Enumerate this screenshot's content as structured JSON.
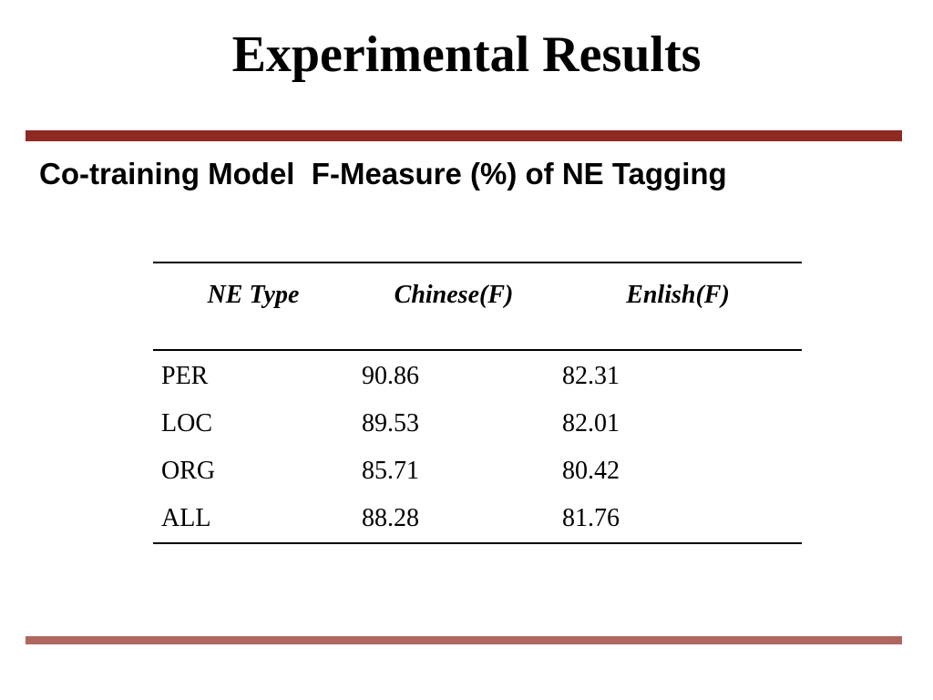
{
  "slide": {
    "title": "Experimental Results",
    "subtitle": "Co-training Model  F-Measure (%) of NE Tagging"
  },
  "table": {
    "headers": [
      "NE Type",
      "Chinese(F)",
      "Enlish(F)"
    ],
    "rows": [
      [
        "PER",
        "90.86",
        "82.31"
      ],
      [
        "LOC",
        "89.53",
        "82.01"
      ],
      [
        "ORG",
        "85.71",
        "80.42"
      ],
      [
        "ALL",
        "88.28",
        "81.76"
      ]
    ]
  },
  "colors": {
    "top_rule": "#8f2a22",
    "bottom_rule": "#b0665f",
    "text": "#000000",
    "background": "#ffffff"
  }
}
